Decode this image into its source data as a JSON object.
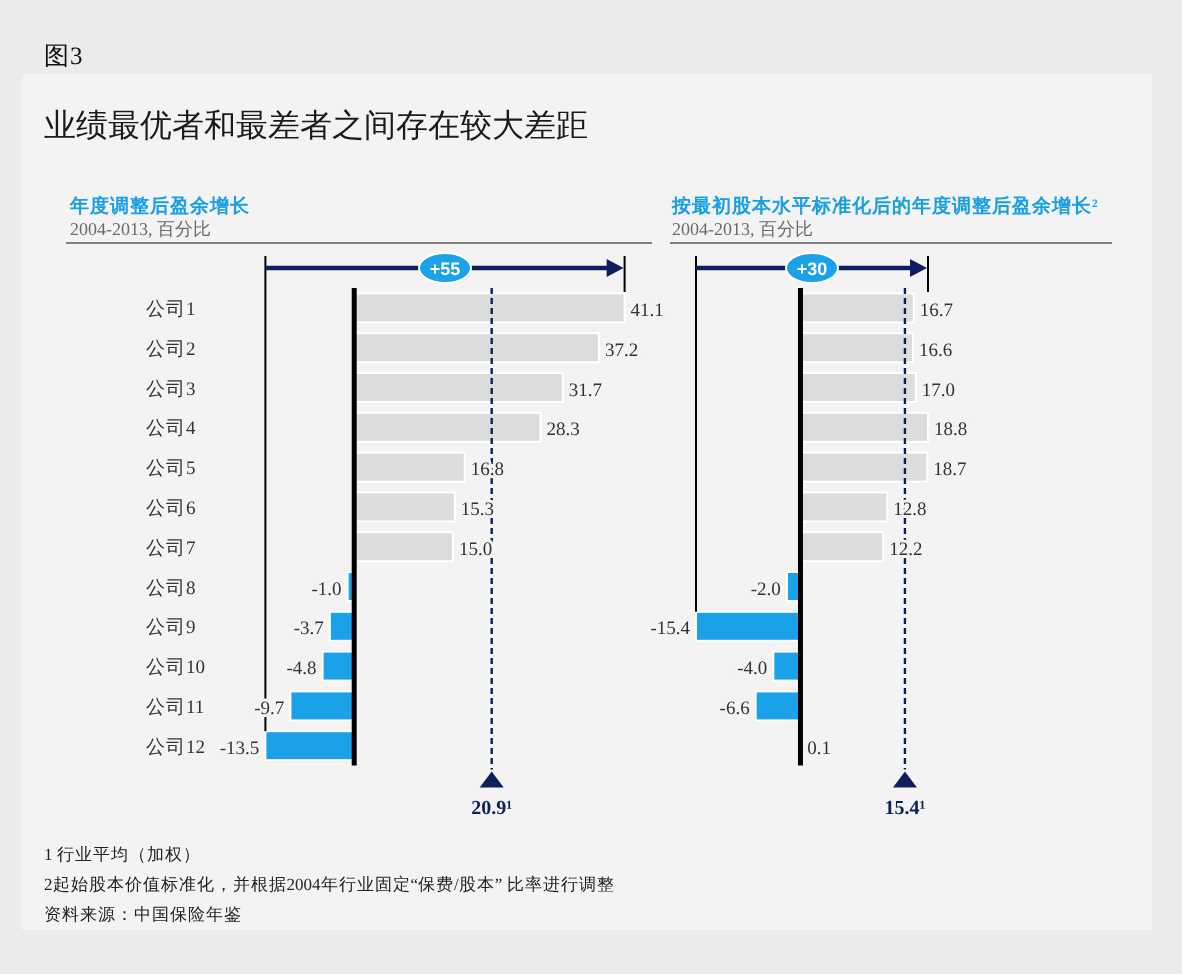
{
  "chart_data": [
    {
      "type": "other",
      "title": "业绩最优者和最差者之间存在较大差距",
      "annotations": [
        "图3"
      ]
    },
    {
      "type": "bar",
      "orientation": "horizontal",
      "title": "年度调整后盈余增长",
      "subtitle": "2004-2013, 百分比",
      "categories": [
        "公司1",
        "公司2",
        "公司3",
        "公司4",
        "公司5",
        "公司6",
        "公司7",
        "公司8",
        "公司9",
        "公司10",
        "公司11",
        "公司12"
      ],
      "values": [
        41.1,
        37.2,
        31.7,
        28.3,
        16.8,
        15.3,
        15.0,
        -1.0,
        -3.7,
        -4.8,
        -9.7,
        -13.5
      ],
      "colors": [
        "#dcdcdc",
        "#dcdcdc",
        "#dcdcdc",
        "#dcdcdc",
        "#dcdcdc",
        "#dcdcdc",
        "#dcdcdc",
        "#1ba1e8",
        "#1ba1e8",
        "#1ba1e8",
        "#1ba1e8",
        "#1ba1e8"
      ],
      "value_labels": [
        "41.1",
        "37.2",
        "31.7",
        "28.3",
        "16.8",
        "15.3",
        "15.0",
        "-1.0",
        "-3.7",
        "-4.8",
        "-9.7",
        "-13.5"
      ],
      "ref_lines": [
        {
          "axis": "x",
          "value": 20.9,
          "label": "20.9¹",
          "color": "#0d1f5c",
          "line_style": "dashed"
        }
      ],
      "annotations": [
        "+55"
      ]
    },
    {
      "type": "bar",
      "orientation": "horizontal",
      "title": "按最初股本水平标准化后的年度调整后盈余增长²",
      "subtitle": "2004-2013, 百分比",
      "categories": [
        null,
        null,
        null,
        null,
        null,
        null,
        null,
        null,
        null,
        null,
        null,
        null
      ],
      "values": [
        16.7,
        16.6,
        17.0,
        18.8,
        18.7,
        12.8,
        12.2,
        -2.0,
        -15.4,
        -4.0,
        -6.6,
        0.1
      ],
      "colors": [
        "#dcdcdc",
        "#dcdcdc",
        "#dcdcdc",
        "#dcdcdc",
        "#dcdcdc",
        "#dcdcdc",
        "#dcdcdc",
        "#1ba1e8",
        "#1ba1e8",
        "#1ba1e8",
        "#1ba1e8",
        "#dcdcdc"
      ],
      "value_labels": [
        "16.7",
        "16.6",
        "17.0",
        "18.8",
        "18.7",
        "12.8",
        "12.2",
        "-2.0",
        "-15.4",
        "-4.0",
        "-6.6",
        "0.1"
      ],
      "ref_lines": [
        {
          "axis": "x",
          "value": 15.4,
          "label": "15.4¹",
          "color": "#0d1f5c",
          "line_style": "dashed"
        }
      ],
      "annotations": [
        "+30"
      ]
    },
    {
      "type": "other",
      "annotations": [
        "1 行业平均（加权）",
        "2起始股本价值标准化，并根据2004年行业固定“保费/股本” 比率进行调整",
        "资料来源：中国保险年鉴"
      ]
    }
  ]
}
